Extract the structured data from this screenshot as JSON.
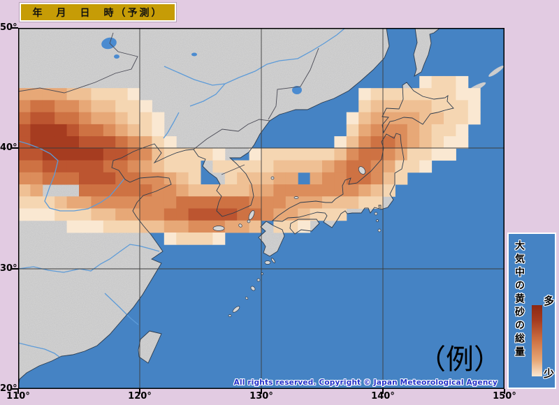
{
  "header": {
    "date_label": "年　月　日　時（予測）"
  },
  "map": {
    "copyright": "All rights reserved. Copyright © Japan Meteorological Agency",
    "example_label": "（例）",
    "lon_tick_labels": [
      "110°",
      "120°",
      "130°",
      "140°",
      "150°"
    ],
    "lat_tick_labels": [
      "50°",
      "40°",
      "30°",
      "20°"
    ]
  },
  "legend": {
    "title": "大気中の黄砂の総量",
    "high_label": "多",
    "low_label": "少"
  },
  "colors": {
    "background": "#E2CBE2",
    "gold": "#C69C06",
    "sea": "#4583C4",
    "lake": "#4B8BD0",
    "river": "#5D9BD8",
    "land": "#D6D6D6",
    "coast": "#2B3B4E",
    "border": "#4A4A55",
    "graticule": "#3C3C3C",
    "copyright_blue": "#2330C8",
    "dust_scale": [
      "",
      "#FAE8D2",
      "#F5D6B2",
      "#EFC094",
      "#E7A877",
      "#DC8D5B",
      "#CE7243",
      "#BC5530",
      "#A63C20",
      "#8C2812"
    ]
  },
  "chart_data": {
    "type": "heatmap",
    "title": "大気中の黄砂の総量（予測）",
    "x_range_deg_east": [
      110,
      150
    ],
    "y_range_deg_north": [
      20,
      50
    ],
    "cell_size_deg": 1,
    "scale_meaning": {
      "0": "none",
      "1": "少 (low)",
      "9": "多 (high)"
    },
    "grid_rows_north_to_south": [
      "0000000000000000000000000000000000000000",
      "0000000000000000000000000000000000000000",
      "0000000000000000000000000000000000000000",
      "0000000000000000000000000000000000000000",
      "0000000000000000000000000000000001221000",
      "4444332221000000000000000000122222221100",
      "5665543322100000000000000000233333222100",
      "6776654432210000000000000001344443322100",
      "7888766543210000000000000002455543221000",
      "7888877765421000000000000013566543211000",
      "7788888776532222100122222235665422110000",
      "6677777665432220222223333456654221000000",
      "5566677766554320023334404556653200000000",
      "3400066666655433333445555555432000000000",
      "2223445555555666666555444333220000000000",
      "1112223344556677776654432220000000000000",
      "0000111222334455544302210000000000000000",
      "0000000000001222100000000000000000000000",
      "0000000000000000000000000000000000000000",
      "0000000000000000000000000000000000000000",
      "0000000000000000000000000000000000000000",
      "0000000000000000000000000000000000000000",
      "0000000000000000000000000000000000000000",
      "0000000000000000000000000000000000000000",
      "0000000000000000000000000000000000000000",
      "0000000000000000000000000000000000000000",
      "0000000000000000000000000000000000000000",
      "0000000000000000000000000000000000000000",
      "0000000000000000000000000000000000000000",
      "0000000000000000000000000000000000000000"
    ]
  }
}
